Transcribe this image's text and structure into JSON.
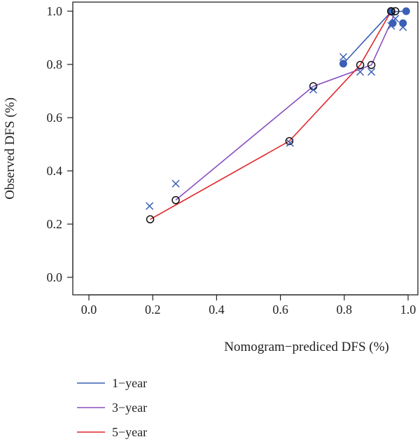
{
  "chart_data": {
    "type": "line",
    "xlabel": "Nomogram−prediced DFS (%)",
    "ylabel": "Observed DFS (%)",
    "xlim": [
      -0.05,
      1.02
    ],
    "ylim": [
      -0.05,
      1.03
    ],
    "x_ticks": [
      "0.0",
      "0.2",
      "0.4",
      "0.6",
      "0.8",
      "1.0"
    ],
    "y_ticks": [
      "0.0",
      "0.2",
      "0.4",
      "0.6",
      "0.8",
      "1.0"
    ],
    "grid": false,
    "legend_position": "bottom-left",
    "series": [
      {
        "name": "1−year",
        "color": "#3A5FB5",
        "marker": "filled-circle",
        "x": [
          0.797,
          0.947,
          0.952,
          0.984,
          0.994
        ],
        "y": [
          0.803,
          0.998,
          0.955,
          0.955,
          1.0
        ],
        "line_x": [
          0.797,
          0.947,
          0.994
        ],
        "line_y": [
          0.803,
          0.998,
          1.0
        ]
      },
      {
        "name": "3−year",
        "color": "#8A4FBF",
        "marker": "open-circle",
        "x": [
          0.272,
          0.703,
          0.885,
          0.947,
          0.96
        ],
        "y": [
          0.29,
          0.718,
          0.798,
          1.0,
          1.0
        ],
        "line_x": [
          0.272,
          0.703,
          0.885,
          0.947,
          0.96
        ],
        "line_y": [
          0.29,
          0.718,
          0.798,
          0.96,
          1.0
        ]
      },
      {
        "name": "5−year",
        "color": "#E0262B",
        "marker": "open-circle",
        "x": [
          0.192,
          0.628,
          0.85,
          0.947
        ],
        "y": [
          0.218,
          0.512,
          0.798,
          1.0
        ],
        "line_x": [
          0.192,
          0.628,
          0.85,
          0.947
        ],
        "line_y": [
          0.218,
          0.512,
          0.798,
          1.0
        ]
      }
    ],
    "observed_markers": {
      "color": "#3A5FB5",
      "marker": "x",
      "x": [
        0.19,
        0.272,
        0.63,
        0.703,
        0.797,
        0.85,
        0.885,
        0.947,
        0.96,
        0.984
      ],
      "y": [
        0.268,
        0.352,
        0.505,
        0.705,
        0.828,
        0.772,
        0.772,
        0.945,
        0.972,
        0.94
      ]
    }
  }
}
